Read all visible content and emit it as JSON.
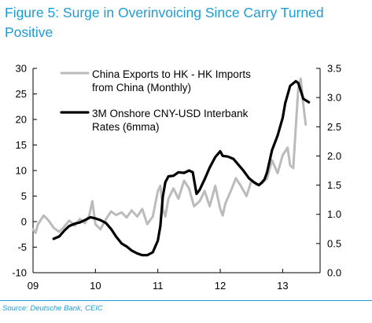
{
  "figure": {
    "title": "Figure 5: Surge in Overinvoicing Since Carry Turned Positive",
    "source": "Source: Deutsche Bank, CEIC"
  },
  "colors": {
    "title": "#1d9cd3",
    "series_exports": "#bbbbbb",
    "series_rates": "#000000",
    "axis": "#000000"
  },
  "chart_data": {
    "type": "line",
    "title": "",
    "xlabel": "",
    "ylabel_left": "",
    "ylabel_right": "",
    "x_ticks": [
      "09",
      "10",
      "11",
      "12",
      "13"
    ],
    "x_tick_values": [
      2009,
      2010,
      2011,
      2012,
      2013
    ],
    "xlim": [
      2009,
      2013.6
    ],
    "ylim_left": [
      -10,
      30
    ],
    "yticks_left": [
      "-10",
      "-5",
      "0",
      "5",
      "10",
      "15",
      "20",
      "25",
      "30"
    ],
    "ylim_right": [
      0.0,
      3.5
    ],
    "yticks_right": [
      "0.0",
      "0.5",
      "1.0",
      "1.5",
      "2.0",
      "2.5",
      "3.0",
      "3.5"
    ],
    "grid": false,
    "legend_position": "top-left",
    "series": [
      {
        "name": "China Exports to HK - HK Imports from China (Monthly)",
        "axis": "left",
        "color": "#bbbbbb",
        "points": [
          [
            2009.0,
            -1.5
          ],
          [
            2009.04,
            -2.2
          ],
          [
            2009.08,
            -0.5
          ],
          [
            2009.17,
            1.2
          ],
          [
            2009.25,
            0.2
          ],
          [
            2009.33,
            -1.2
          ],
          [
            2009.42,
            -2.0
          ],
          [
            2009.5,
            -1.0
          ],
          [
            2009.58,
            0.2
          ],
          [
            2009.67,
            -0.8
          ],
          [
            2009.75,
            0.5
          ],
          [
            2009.83,
            -0.3
          ],
          [
            2009.9,
            1.2
          ],
          [
            2009.95,
            4.0
          ],
          [
            2010.0,
            -0.5
          ],
          [
            2010.08,
            -1.5
          ],
          [
            2010.17,
            0.5
          ],
          [
            2010.25,
            2.0
          ],
          [
            2010.33,
            1.3
          ],
          [
            2010.42,
            1.8
          ],
          [
            2010.5,
            0.8
          ],
          [
            2010.58,
            2.2
          ],
          [
            2010.67,
            1.0
          ],
          [
            2010.75,
            2.5
          ],
          [
            2010.83,
            -0.5
          ],
          [
            2010.92,
            1.0
          ],
          [
            2011.0,
            6.0
          ],
          [
            2011.04,
            7.0
          ],
          [
            2011.08,
            2.5
          ],
          [
            2011.12,
            1.0
          ],
          [
            2011.17,
            4.5
          ],
          [
            2011.25,
            6.5
          ],
          [
            2011.33,
            4.5
          ],
          [
            2011.42,
            8.0
          ],
          [
            2011.5,
            6.5
          ],
          [
            2011.58,
            3.0
          ],
          [
            2011.67,
            4.0
          ],
          [
            2011.75,
            6.0
          ],
          [
            2011.83,
            3.0
          ],
          [
            2011.92,
            7.0
          ],
          [
            2012.0,
            2.5
          ],
          [
            2012.04,
            1.2
          ],
          [
            2012.08,
            3.5
          ],
          [
            2012.17,
            6.0
          ],
          [
            2012.25,
            8.5
          ],
          [
            2012.33,
            7.0
          ],
          [
            2012.42,
            5.0
          ],
          [
            2012.5,
            8.0
          ],
          [
            2012.58,
            7.2
          ],
          [
            2012.67,
            7.5
          ],
          [
            2012.75,
            8.5
          ],
          [
            2012.83,
            12.0
          ],
          [
            2012.92,
            9.5
          ],
          [
            2013.0,
            13.0
          ],
          [
            2013.08,
            14.5
          ],
          [
            2013.12,
            11.0
          ],
          [
            2013.17,
            10.5
          ],
          [
            2013.21,
            18.5
          ],
          [
            2013.25,
            26.0
          ],
          [
            2013.29,
            28.0
          ],
          [
            2013.33,
            23.0
          ],
          [
            2013.37,
            19.0
          ]
        ]
      },
      {
        "name": "3M Onshore CNY-USD Interbank Rates (6mma)",
        "axis": "right",
        "color": "#000000",
        "points": [
          [
            2009.33,
            0.58
          ],
          [
            2009.42,
            0.62
          ],
          [
            2009.5,
            0.72
          ],
          [
            2009.58,
            0.8
          ],
          [
            2009.67,
            0.84
          ],
          [
            2009.75,
            0.86
          ],
          [
            2009.83,
            0.9
          ],
          [
            2009.92,
            0.95
          ],
          [
            2010.0,
            0.93
          ],
          [
            2010.08,
            0.9
          ],
          [
            2010.17,
            0.85
          ],
          [
            2010.25,
            0.75
          ],
          [
            2010.33,
            0.62
          ],
          [
            2010.42,
            0.5
          ],
          [
            2010.5,
            0.45
          ],
          [
            2010.58,
            0.38
          ],
          [
            2010.67,
            0.33
          ],
          [
            2010.75,
            0.3
          ],
          [
            2010.83,
            0.3
          ],
          [
            2010.92,
            0.35
          ],
          [
            2011.0,
            0.55
          ],
          [
            2011.04,
            0.8
          ],
          [
            2011.08,
            1.3
          ],
          [
            2011.12,
            1.55
          ],
          [
            2011.17,
            1.65
          ],
          [
            2011.25,
            1.66
          ],
          [
            2011.33,
            1.72
          ],
          [
            2011.42,
            1.71
          ],
          [
            2011.5,
            1.75
          ],
          [
            2011.56,
            1.72
          ],
          [
            2011.62,
            1.35
          ],
          [
            2011.67,
            1.42
          ],
          [
            2011.75,
            1.6
          ],
          [
            2011.83,
            1.8
          ],
          [
            2011.92,
            1.98
          ],
          [
            2012.0,
            2.08
          ],
          [
            2012.04,
            2.0
          ],
          [
            2012.12,
            1.99
          ],
          [
            2012.21,
            1.95
          ],
          [
            2012.29,
            1.85
          ],
          [
            2012.37,
            1.75
          ],
          [
            2012.46,
            1.62
          ],
          [
            2012.54,
            1.55
          ],
          [
            2012.62,
            1.5
          ],
          [
            2012.67,
            1.55
          ],
          [
            2012.71,
            1.6
          ],
          [
            2012.75,
            1.72
          ],
          [
            2012.83,
            2.1
          ],
          [
            2012.92,
            2.35
          ],
          [
            2013.0,
            2.65
          ],
          [
            2013.04,
            2.9
          ],
          [
            2013.12,
            3.2
          ],
          [
            2013.21,
            3.28
          ],
          [
            2013.25,
            3.25
          ],
          [
            2013.29,
            3.12
          ],
          [
            2013.33,
            2.98
          ],
          [
            2013.42,
            2.92
          ]
        ]
      }
    ]
  }
}
